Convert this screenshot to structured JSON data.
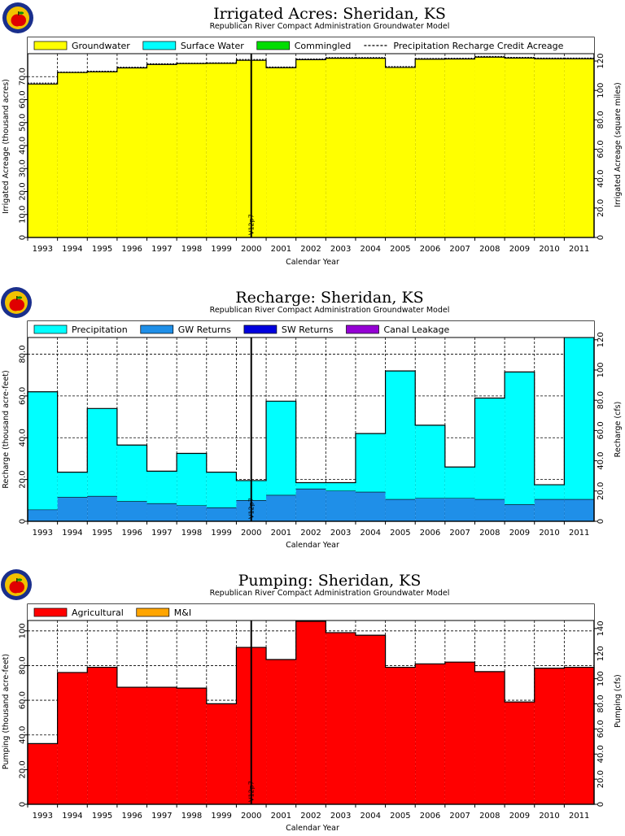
{
  "chart_data": [
    {
      "type": "bar",
      "title": "Irrigated Acres: Sheridan, KS",
      "subtitle": "Republican River Compact Administration Groundwater Model",
      "xlabel": "Calendar Year",
      "ylabel": "Irrigated Acreage (thousand acres)",
      "ylabel_right": "Irrigated Acreage (square miles)",
      "categories": [
        "1993",
        "1994",
        "1995",
        "1996",
        "1997",
        "1998",
        "1999",
        "2000",
        "2001",
        "2002",
        "2003",
        "2004",
        "2005",
        "2006",
        "2007",
        "2008",
        "2009",
        "2010",
        "2011"
      ],
      "ylim": [
        0,
        80
      ],
      "yticks": [
        "0",
        "10.0",
        "20.0",
        "30.0",
        "40.0",
        "50.0",
        "60.0",
        "70.0"
      ],
      "right_ylim": [
        0,
        125
      ],
      "right_yticks": [
        "0",
        "20.0",
        "40.0",
        "60.0",
        "80.0",
        "100",
        "120"
      ],
      "stacked": true,
      "series": [
        {
          "name": "Groundwater",
          "color": "#ffff00",
          "values": [
            66.8,
            71.8,
            72.1,
            73.8,
            75.3,
            75.7,
            75.8,
            77.1,
            73.9,
            77.4,
            78.0,
            78.0,
            74.0,
            77.6,
            77.7,
            78.5,
            78.1,
            77.8,
            77.8
          ]
        },
        {
          "name": "Surface Water",
          "color": "#00ffff",
          "values": [
            0,
            0,
            0,
            0,
            0,
            0,
            0,
            0,
            0,
            0,
            0,
            0,
            0,
            0,
            0,
            0,
            0,
            0,
            0
          ]
        },
        {
          "name": "Commingled",
          "color": "#00dd00",
          "values": [
            0,
            0,
            0,
            0,
            0,
            0,
            0,
            0,
            0,
            0,
            0,
            0,
            0,
            0,
            0,
            0,
            0,
            0,
            0
          ]
        }
      ],
      "line_series": {
        "name": "Precipitation Recharge Credit Acreage",
        "values": [
          67.2,
          72.0,
          72.4,
          74.1,
          75.6,
          75.9,
          76.0,
          77.5,
          74.2,
          77.7,
          78.3,
          78.3,
          74.4,
          77.9,
          78.0,
          78.8,
          78.4,
          78.1,
          78.1
        ]
      },
      "vline": {
        "label": "V12p7",
        "position": 7.5
      }
    },
    {
      "type": "bar",
      "title": "Recharge: Sheridan, KS",
      "subtitle": "Republican River Compact Administration Groundwater Model",
      "xlabel": "Calendar Year",
      "ylabel": "Recharge (thousand acre-feet)",
      "ylabel_right": "Recharge (cfs)",
      "categories": [
        "1993",
        "1994",
        "1995",
        "1996",
        "1997",
        "1998",
        "1999",
        "2000",
        "2001",
        "2002",
        "2003",
        "2004",
        "2005",
        "2006",
        "2007",
        "2008",
        "2009",
        "2010",
        "2011"
      ],
      "ylim": [
        0,
        88
      ],
      "yticks": [
        "0",
        "20.0",
        "40.0",
        "60.0",
        "80.0"
      ],
      "right_ylim": [
        0,
        121.5
      ],
      "right_yticks": [
        "0",
        "20.0",
        "40.0",
        "60.0",
        "80.0",
        "100",
        "120"
      ],
      "stacked": true,
      "series": [
        {
          "name": "GW Returns",
          "color": "#1f8fe8",
          "values": [
            5.5,
            11.5,
            12.0,
            9.5,
            8.5,
            7.5,
            6.5,
            10.0,
            12.5,
            15.5,
            14.5,
            14.0,
            10.5,
            11.0,
            11.0,
            10.5,
            8.0,
            10.5,
            10.5
          ]
        },
        {
          "name": "Precipitation",
          "color": "#00ffff",
          "values": [
            56.5,
            12.0,
            42.0,
            27.0,
            15.5,
            25.0,
            17.0,
            9.5,
            45.0,
            3.0,
            4.0,
            28.0,
            61.5,
            35.0,
            15.0,
            48.5,
            63.5,
            7.0,
            77.5
          ]
        },
        {
          "name": "SW Returns",
          "color": "#0000dd",
          "values": [
            0,
            0,
            0,
            0,
            0,
            0,
            0,
            0,
            0,
            0,
            0,
            0,
            0,
            0,
            0,
            0,
            0,
            0,
            0
          ]
        },
        {
          "name": "Canal Leakage",
          "color": "#9400d3",
          "values": [
            0,
            0,
            0,
            0,
            0,
            0,
            0,
            0,
            0,
            0,
            0,
            0,
            0,
            0,
            0,
            0,
            0,
            0,
            0
          ]
        }
      ],
      "legend_order": [
        "Precipitation",
        "GW Returns",
        "SW Returns",
        "Canal Leakage"
      ],
      "vline": {
        "label": "V12p7",
        "position": 7.5
      }
    },
    {
      "type": "bar",
      "title": "Pumping: Sheridan, KS",
      "subtitle": "Republican River Compact Administration Groundwater Model",
      "xlabel": "Calendar Year",
      "ylabel": "Pumping (thousand acre-feet)",
      "ylabel_right": "Pumping (cfs)",
      "categories": [
        "1993",
        "1994",
        "1995",
        "1996",
        "1997",
        "1998",
        "1999",
        "2000",
        "2001",
        "2002",
        "2003",
        "2004",
        "2005",
        "2006",
        "2007",
        "2008",
        "2009",
        "2010",
        "2011"
      ],
      "ylim": [
        0,
        106
      ],
      "yticks": [
        "0",
        "20.0",
        "40.0",
        "60.0",
        "80.0",
        "100"
      ],
      "right_ylim": [
        0,
        146.4
      ],
      "right_yticks": [
        "0",
        "20.0",
        "40.0",
        "60.0",
        "80.0",
        "100",
        "120",
        "140"
      ],
      "stacked": true,
      "series": [
        {
          "name": "Agricultural",
          "color": "#ff0000",
          "values": [
            35.0,
            76.0,
            79.0,
            67.5,
            67.5,
            67.0,
            58.0,
            90.5,
            83.5,
            105.5,
            99.0,
            97.5,
            79.0,
            81.0,
            82.0,
            76.5,
            59.0,
            78.5,
            79.0
          ]
        },
        {
          "name": "M&I",
          "color": "#ffa500",
          "values": [
            0,
            0,
            0,
            0,
            0,
            0,
            0,
            0,
            0,
            0,
            0,
            0,
            0,
            0,
            0,
            0,
            0,
            0,
            0
          ]
        }
      ],
      "vline": {
        "label": "V12p7",
        "position": 7.5
      }
    }
  ]
}
